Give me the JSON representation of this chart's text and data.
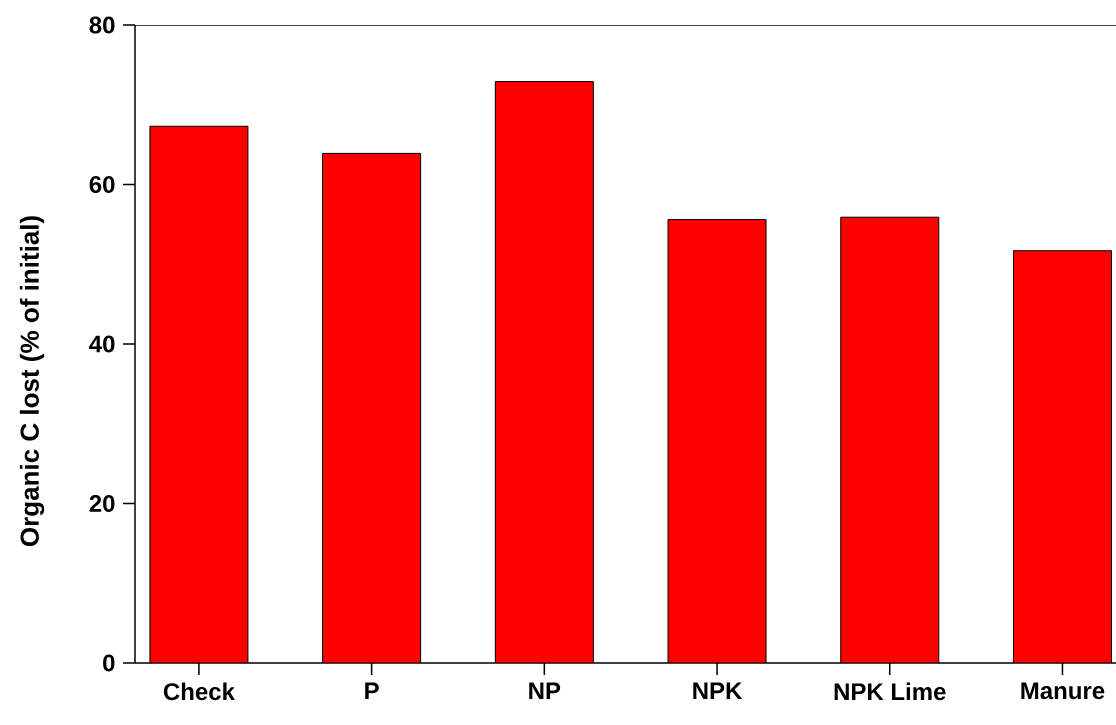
{
  "chart_data": {
    "type": "bar",
    "ylabel": "Organic C lost (% of initial)",
    "categories": [
      "Check",
      "P",
      "NP",
      "NPK",
      "NPK Lime",
      "Manure"
    ],
    "values": [
      67.3,
      63.9,
      72.9,
      55.6,
      55.9,
      51.7
    ],
    "color": "#ff0000",
    "ylim": [
      0,
      80
    ],
    "yticks": [
      0,
      20,
      40,
      60,
      80
    ],
    "grid": false
  }
}
